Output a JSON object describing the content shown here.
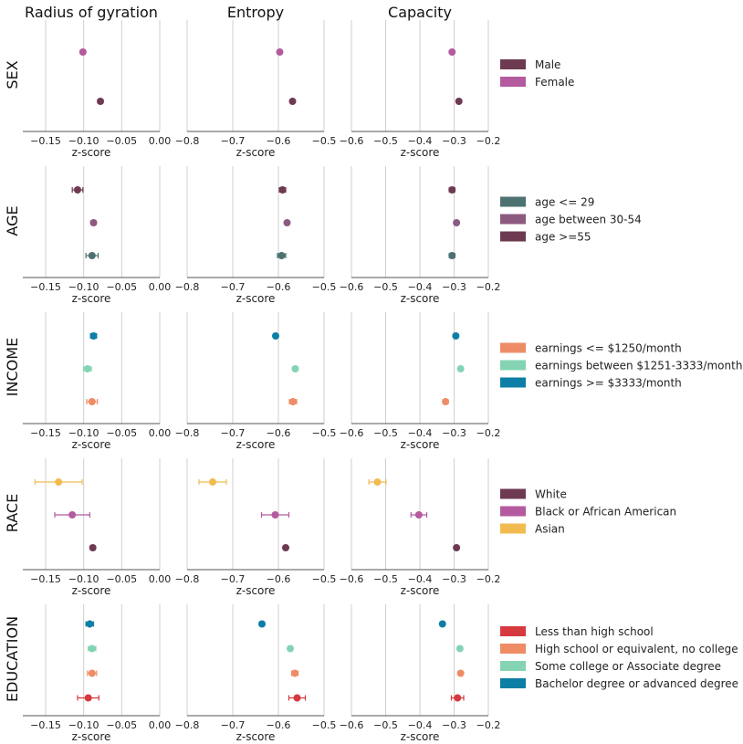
{
  "columns": [
    "Radius of gyration",
    "Entropy",
    "Capacity"
  ],
  "xlabel": "z-score",
  "chart_data": {
    "type": "scatter",
    "xlims": [
      [
        -0.18,
        0.0
      ],
      [
        -0.8,
        -0.5
      ],
      [
        -0.6,
        -0.2
      ]
    ],
    "xticks": [
      [
        -0.15,
        -0.1,
        -0.05,
        0.0
      ],
      [
        -0.8,
        -0.7,
        -0.6,
        -0.5
      ],
      [
        -0.6,
        -0.5,
        -0.4,
        -0.3,
        -0.2
      ]
    ],
    "xtick_labels": [
      [
        "−0.15",
        "−0.10",
        "−0.05",
        "0.00"
      ],
      [
        "−0.8",
        "−0.7",
        "−0.6",
        "−0.5"
      ],
      [
        "−0.6",
        "−0.5",
        "−0.4",
        "−0.3",
        "−0.2"
      ]
    ],
    "rows": [
      {
        "title": "SEX",
        "series": [
          {
            "name": "Female",
            "color": "#b45a9e",
            "values": [
              [
                -0.101,
                0.003
              ],
              [
                -0.597,
                0.004
              ],
              [
                -0.306,
                0.003
              ]
            ]
          },
          {
            "name": "Male",
            "color": "#6e3a52",
            "values": [
              [
                -0.078,
                0.003
              ],
              [
                -0.569,
                0.004
              ],
              [
                -0.286,
                0.003
              ]
            ]
          }
        ],
        "legend": [
          "Male",
          "Female"
        ]
      },
      {
        "title": "AGE",
        "series": [
          {
            "name": "age >=55",
            "color": "#6e3a52",
            "values": [
              [
                -0.108,
                0.007
              ],
              [
                -0.591,
                0.007
              ],
              [
                -0.306,
                0.008
              ]
            ]
          },
          {
            "name": "age between 30-54",
            "color": "#8c5a80",
            "values": [
              [
                -0.087,
                0.003
              ],
              [
                -0.581,
                0.003
              ],
              [
                -0.293,
                0.003
              ]
            ]
          },
          {
            "name": "age <= 29",
            "color": "#4d7171",
            "values": [
              [
                -0.089,
                0.008
              ],
              [
                -0.593,
                0.009
              ],
              [
                -0.306,
                0.008
              ]
            ]
          }
        ],
        "legend": [
          "age <= 29",
          "age between 30-54",
          "age >=55"
        ]
      },
      {
        "title": "INCOME",
        "series": [
          {
            "name": "earnings >= $3333/month",
            "color": "#0d7ea6",
            "values": [
              [
                -0.087,
                0.004
              ],
              [
                -0.606,
                0.004
              ],
              [
                -0.295,
                0.004
              ]
            ]
          },
          {
            "name": "earnings between $1251-3333/month",
            "color": "#84d4b3",
            "values": [
              [
                -0.095,
                0.005
              ],
              [
                -0.563,
                0.005
              ],
              [
                -0.281,
                0.004
              ]
            ]
          },
          {
            "name": "earnings <= $1250/month",
            "color": "#ee8c66",
            "values": [
              [
                -0.089,
                0.007
              ],
              [
                -0.568,
                0.008
              ],
              [
                -0.325,
                0.007
              ]
            ]
          }
        ],
        "legend": [
          "earnings <= $1250/month",
          "earnings between $1251-3333/month",
          "earnings >= $3333/month"
        ]
      },
      {
        "title": "RACE",
        "series": [
          {
            "name": "Asian",
            "color": "#f2bb50",
            "values": [
              [
                -0.133,
                0.031
              ],
              [
                -0.744,
                0.03
              ],
              [
                -0.524,
                0.025
              ]
            ]
          },
          {
            "name": "Black or African American",
            "color": "#b45a9e",
            "values": [
              [
                -0.115,
                0.023
              ],
              [
                -0.607,
                0.03
              ],
              [
                -0.403,
                0.023
              ]
            ]
          },
          {
            "name": "White",
            "color": "#6e3a52",
            "values": [
              [
                -0.088,
                0.003
              ],
              [
                -0.584,
                0.003
              ],
              [
                -0.293,
                0.003
              ]
            ]
          }
        ],
        "legend": [
          "White",
          "Black or African American",
          "Asian"
        ]
      },
      {
        "title": "EDUCATION",
        "series": [
          {
            "name": "Bachelor degree or advanced degree",
            "color": "#0d7ea6",
            "values": [
              [
                -0.092,
                0.005
              ],
              [
                -0.636,
                0.005
              ],
              [
                -0.334,
                0.005
              ]
            ]
          },
          {
            "name": "Some college or Associate degree",
            "color": "#84d4b3",
            "values": [
              [
                -0.089,
                0.005
              ],
              [
                -0.574,
                0.005
              ],
              [
                -0.283,
                0.005
              ]
            ]
          },
          {
            "name": "High school or equivalent, no college",
            "color": "#ee8c66",
            "values": [
              [
                -0.089,
                0.006
              ],
              [
                -0.564,
                0.007
              ],
              [
                -0.281,
                0.005
              ]
            ]
          },
          {
            "name": "Less than high school",
            "color": "#d63a3f",
            "values": [
              [
                -0.094,
                0.014
              ],
              [
                -0.559,
                0.018
              ],
              [
                -0.29,
                0.018
              ]
            ]
          }
        ],
        "legend": [
          "Less than high school",
          "High school or equivalent, no college",
          "Some college or Associate degree",
          "Bachelor degree or advanced degree"
        ]
      }
    ]
  }
}
